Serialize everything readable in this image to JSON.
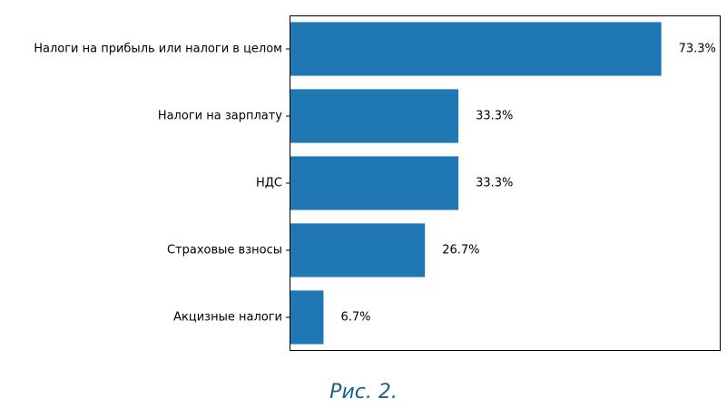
{
  "chart_data": {
    "type": "bar",
    "orientation": "horizontal",
    "categories": [
      "Налоги на прибыль или налоги в целом",
      "Налоги на зарплату",
      "НДС",
      "Страховые взносы",
      "Акцизные налоги"
    ],
    "values": [
      73.3,
      33.3,
      33.3,
      26.7,
      6.7
    ],
    "data_labels": [
      "73.3%",
      "33.3%",
      "33.3%",
      "26.7%",
      "6.7%"
    ],
    "title": "",
    "xlabel": "",
    "ylabel": "",
    "xlim": [
      0,
      85
    ],
    "grid": false,
    "bar_color": "#1f77b4"
  },
  "caption": "Рис. 2."
}
